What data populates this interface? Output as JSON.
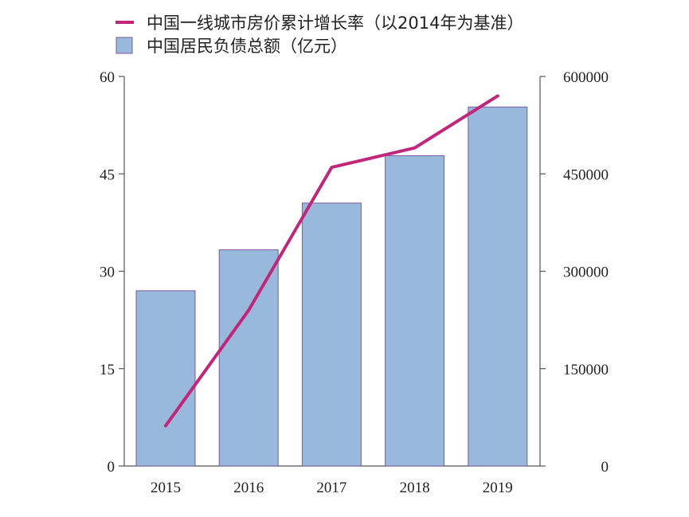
{
  "chart_data": {
    "type": "bar+line",
    "categories": [
      "2015",
      "2016",
      "2017",
      "2018",
      "2019"
    ],
    "series": [
      {
        "name": "中国居民负债总额（亿元）",
        "type": "bar",
        "axis": "right",
        "values": [
          270000,
          333000,
          405000,
          478000,
          553000
        ],
        "color": "#98b8dc",
        "edge_color": "#7a5a9a"
      },
      {
        "name": "中国一线城市房价累计增长率（以2014年为基准）",
        "type": "line",
        "axis": "left",
        "values": [
          6.2,
          24,
          46,
          49,
          57
        ],
        "color": "#c2267a"
      }
    ],
    "left_axis": {
      "ylim": [
        0,
        60
      ],
      "ticks": [
        "0",
        "15",
        "30",
        "45",
        "60"
      ]
    },
    "right_axis": {
      "ylim": [
        0,
        600000
      ],
      "ticks": [
        "0",
        "150000",
        "300000",
        "450000",
        "600000"
      ]
    },
    "legend_position": "top"
  }
}
